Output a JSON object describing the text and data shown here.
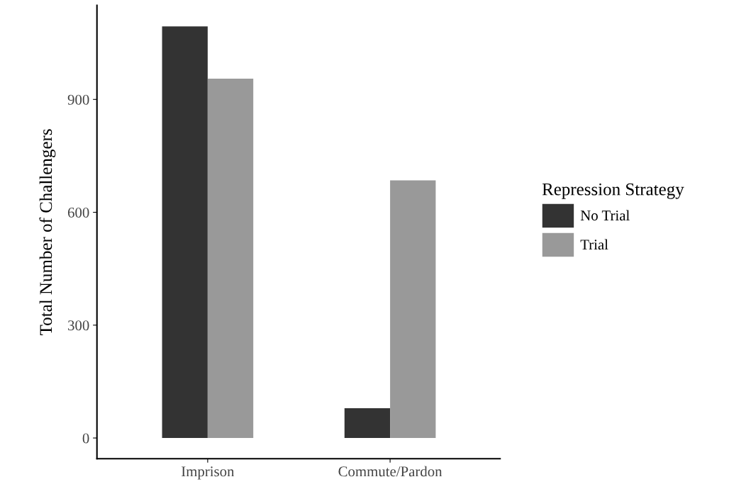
{
  "chart_data": {
    "type": "bar",
    "ylabel": "Total Number of Challengers",
    "legend_title": "Repression Strategy",
    "categories": [
      "Imprison",
      "Commute/Pardon"
    ],
    "series": [
      {
        "name": "No Trial",
        "color": "#333333",
        "values": [
          1094,
          79
        ]
      },
      {
        "name": "Trial",
        "color": "#999999",
        "values": [
          955,
          685
        ]
      }
    ],
    "ylim": [
      -55,
      1150
    ],
    "yticks": [
      0,
      300,
      600,
      900
    ],
    "grid": false,
    "legend": "right"
  }
}
